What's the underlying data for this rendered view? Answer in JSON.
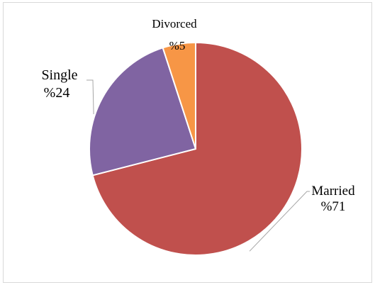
{
  "chart_data": {
    "type": "pie",
    "title": "",
    "slices": [
      {
        "label": "Married",
        "pct_text": "%71",
        "value": 71,
        "color": "#c0504d"
      },
      {
        "label": "Single",
        "pct_text": "%24",
        "value": 24,
        "color": "#8064a2"
      },
      {
        "label": "Divorced",
        "pct_text": "%5",
        "value": 5,
        "color": "#f79646"
      }
    ],
    "legend": "none",
    "label_position": "outside with leader lines"
  }
}
